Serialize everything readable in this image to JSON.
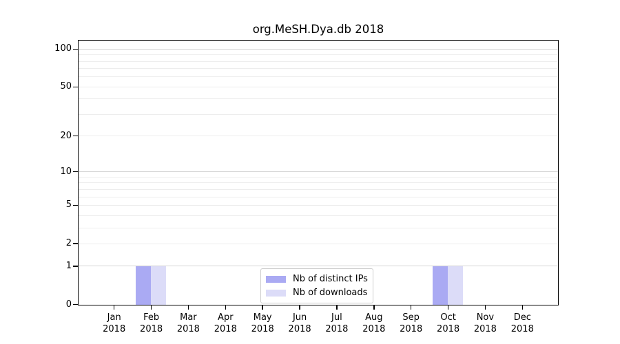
{
  "chart_data": {
    "type": "bar",
    "title": "org.MeSH.Dya.db 2018",
    "categories": [
      "Jan",
      "Feb",
      "Mar",
      "Apr",
      "May",
      "Jun",
      "Jul",
      "Aug",
      "Sep",
      "Oct",
      "Nov",
      "Dec"
    ],
    "x_sub_label": "2018",
    "series": [
      {
        "name": "Nb of distinct IPs",
        "color": "#aaaaf3",
        "values": [
          0,
          1,
          0,
          0,
          0,
          0,
          0,
          0,
          0,
          1,
          0,
          0
        ]
      },
      {
        "name": "Nb of downloads",
        "color": "#dcdcf8",
        "values": [
          0,
          1,
          0,
          0,
          0,
          0,
          0,
          0,
          0,
          1,
          0,
          0
        ]
      }
    ],
    "yscale": "log1p",
    "ylim": [
      0,
      116
    ],
    "y_ticks": [
      0,
      1,
      2,
      5,
      10,
      20,
      50,
      100
    ],
    "y_minor_gridlines": [
      3,
      4,
      6,
      7,
      8,
      9,
      30,
      40,
      60,
      70,
      80,
      90
    ],
    "y_major_gridlines": [
      1,
      10,
      100
    ],
    "grid": "horizontal",
    "legend_position": "lower center inside",
    "xlabel": "",
    "ylabel": ""
  }
}
